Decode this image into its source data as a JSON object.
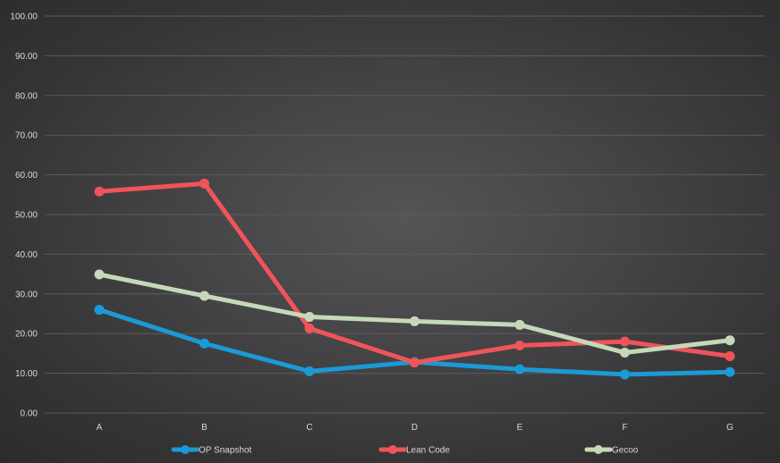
{
  "chart_data": {
    "type": "line",
    "title": "",
    "xlabel": "",
    "ylabel": "",
    "categories": [
      "A",
      "B",
      "C",
      "D",
      "E",
      "F",
      "G"
    ],
    "ylim": [
      0,
      100
    ],
    "yticks": [
      "0.00",
      "10.00",
      "20.00",
      "30.00",
      "40.00",
      "50.00",
      "60.00",
      "70.00",
      "80.00",
      "90.00",
      "100.00"
    ],
    "grid": true,
    "legend_position": "bottom",
    "series": [
      {
        "name": "OP Snapshot",
        "color": "#1a9ad6",
        "values": [
          26.0,
          17.5,
          10.5,
          12.8,
          11.0,
          9.7,
          10.3
        ]
      },
      {
        "name": "Lean Code",
        "color": "#f0545a",
        "values": [
          55.8,
          57.8,
          21.3,
          12.7,
          17.0,
          18.0,
          14.3
        ]
      },
      {
        "name": "Gecoo",
        "color": "#c5d9b8",
        "values": [
          34.9,
          29.5,
          24.2,
          23.1,
          22.2,
          15.2,
          18.3
        ]
      }
    ]
  }
}
